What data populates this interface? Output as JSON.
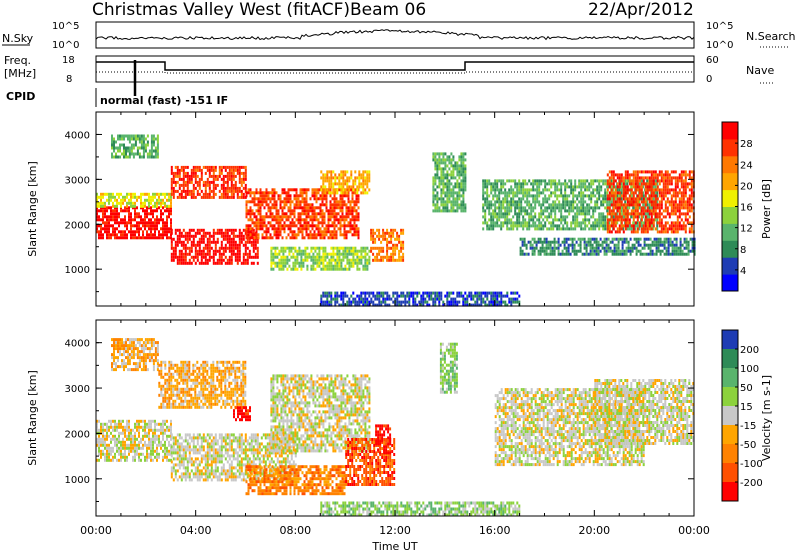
{
  "header": {
    "station": "Christmas Valley West (fitACF)",
    "beam": "Beam 06",
    "date": "22/Apr/2012"
  },
  "top_panels": {
    "nsky_label": "N.Sky",
    "nsky_ticks": [
      "10^5",
      "10^0"
    ],
    "nsearch_label": "N.Search",
    "nsearch_ticks": [
      "10^5",
      "10^0"
    ],
    "freq_label": "Freq.",
    "freq_unit": "[MHz]",
    "freq_ticks": [
      "18",
      "8"
    ],
    "nave_label": "Nave",
    "nave_ticks": [
      "60",
      "0"
    ],
    "cpid_label": "CPID",
    "cpid_value": "normal (fast) -151 IF"
  },
  "colors": {
    "power": [
      "#0000ff",
      "#1e3cb4",
      "#2e8b57",
      "#59b46c",
      "#8cd23c",
      "#f0f000",
      "#ffa500",
      "#ff7800",
      "#ff3200",
      "#ff0000"
    ],
    "velocity": [
      "#1e3cb4",
      "#2e8b57",
      "#59b46c",
      "#8cd23c",
      "#c8c8c8",
      "#ffa500",
      "#ff8200",
      "#ff5000",
      "#ff0000"
    ]
  },
  "chart_data": [
    {
      "type": "heatmap",
      "title": "Power",
      "xlabel": "Time UT",
      "ylabel": "Slant Range [km]",
      "colorbar_label": "Power [dB]",
      "colorbar_ticks": [
        "4",
        "8",
        "12",
        "16",
        "20",
        "24",
        "28"
      ],
      "xlim": [
        0,
        24
      ],
      "ylim": [
        180,
        4500
      ],
      "x_ticks": [
        "00:00",
        "04:00",
        "08:00",
        "12:00",
        "16:00",
        "20:00",
        "00:00"
      ],
      "y_ticks": [
        "1000",
        "2000",
        "3000",
        "4000"
      ],
      "bands": [
        {
          "x0": 0.0,
          "x1": 3.0,
          "y0": 1700,
          "y1": 2400,
          "level": 9
        },
        {
          "x0": 0.0,
          "x1": 3.0,
          "y0": 2400,
          "y1": 2700,
          "level": 5
        },
        {
          "x0": 0.6,
          "x1": 2.5,
          "y0": 3500,
          "y1": 4000,
          "level": 3
        },
        {
          "x0": 3.0,
          "x1": 6.5,
          "y0": 1100,
          "y1": 1900,
          "level": 9
        },
        {
          "x0": 3.0,
          "x1": 6.0,
          "y0": 2600,
          "y1": 3300,
          "level": 8
        },
        {
          "x0": 6.0,
          "x1": 10.5,
          "y0": 1700,
          "y1": 2800,
          "level": 8
        },
        {
          "x0": 9.0,
          "x1": 11.0,
          "y0": 2700,
          "y1": 3200,
          "level": 6
        },
        {
          "x0": 7.0,
          "x1": 11.0,
          "y0": 1000,
          "y1": 1500,
          "level": 4
        },
        {
          "x0": 11.0,
          "x1": 12.3,
          "y0": 1200,
          "y1": 1900,
          "level": 7
        },
        {
          "x0": 13.5,
          "x1": 14.8,
          "y0": 2300,
          "y1": 3600,
          "level": 3
        },
        {
          "x0": 15.5,
          "x1": 22.5,
          "y0": 1900,
          "y1": 3000,
          "level": 3
        },
        {
          "x0": 17.0,
          "x1": 24.0,
          "y0": 1300,
          "y1": 1700,
          "level": 2
        },
        {
          "x0": 20.5,
          "x1": 24.0,
          "y0": 1800,
          "y1": 3200,
          "level": 8
        },
        {
          "x0": 9.0,
          "x1": 17.0,
          "y0": 180,
          "y1": 500,
          "level": 1
        }
      ]
    },
    {
      "type": "heatmap",
      "title": "Velocity",
      "xlabel": "Time UT",
      "ylabel": "Slant Range [km]",
      "colorbar_label": "Velocity [m s-1]",
      "colorbar_ticks": [
        "200",
        "100",
        "50",
        "15",
        "-15",
        "-50",
        "-100",
        "-200"
      ],
      "xlim": [
        0,
        24
      ],
      "ylim": [
        180,
        4500
      ],
      "x_ticks": [
        "00:00",
        "04:00",
        "08:00",
        "12:00",
        "16:00",
        "20:00",
        "00:00"
      ],
      "y_ticks": [
        "1000",
        "2000",
        "3000",
        "4000"
      ],
      "bands": [
        {
          "x0": 0.0,
          "x1": 3.0,
          "y0": 1400,
          "y1": 2300,
          "level": 4
        },
        {
          "x0": 0.6,
          "x1": 2.5,
          "y0": 3400,
          "y1": 4100,
          "level": 5
        },
        {
          "x0": 2.5,
          "x1": 6.0,
          "y0": 2600,
          "y1": 3600,
          "level": 5
        },
        {
          "x0": 3.0,
          "x1": 8.0,
          "y0": 1000,
          "y1": 2000,
          "level": 4
        },
        {
          "x0": 5.5,
          "x1": 6.2,
          "y0": 2300,
          "y1": 2600,
          "level": 8
        },
        {
          "x0": 7.0,
          "x1": 11.0,
          "y0": 1600,
          "y1": 3300,
          "level": 4
        },
        {
          "x0": 6.0,
          "x1": 10.0,
          "y0": 700,
          "y1": 1300,
          "level": 6
        },
        {
          "x0": 10.0,
          "x1": 12.0,
          "y0": 900,
          "y1": 1900,
          "level": 7
        },
        {
          "x0": 11.2,
          "x1": 11.8,
          "y0": 1600,
          "y1": 2200,
          "level": 8
        },
        {
          "x0": 13.8,
          "x1": 14.5,
          "y0": 2900,
          "y1": 4000,
          "level": 3
        },
        {
          "x0": 16.0,
          "x1": 22.0,
          "y0": 1300,
          "y1": 3000,
          "level": 4
        },
        {
          "x0": 20.0,
          "x1": 24.0,
          "y0": 1800,
          "y1": 3200,
          "level": 4
        },
        {
          "x0": 9.0,
          "x1": 17.0,
          "y0": 180,
          "y1": 500,
          "level": 3
        }
      ]
    }
  ]
}
